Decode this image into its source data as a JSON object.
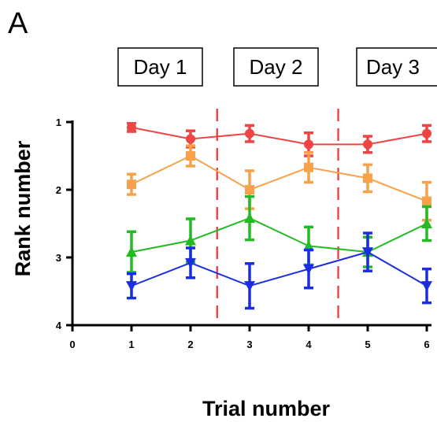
{
  "panel_label": "A",
  "day_labels": [
    "Day 1",
    "Day 2",
    "Day 3"
  ],
  "chart_data": {
    "type": "line",
    "xlabel": "Trial number",
    "ylabel": "Rank number",
    "xlim": [
      0,
      6
    ],
    "ylim": [
      1,
      4
    ],
    "y_inverted": true,
    "x_ticks": [
      0,
      1,
      2,
      3,
      4,
      5,
      6
    ],
    "y_ticks": [
      1,
      2,
      3,
      4
    ],
    "day_dividers": [
      2.45,
      4.5
    ],
    "divider_color": "#e8383d",
    "x": [
      1,
      2,
      3,
      4,
      5,
      6
    ],
    "series": [
      {
        "color": "#ee4444",
        "marker": "circle",
        "values": [
          1.08,
          1.25,
          1.17,
          1.33,
          1.33,
          1.17
        ],
        "errors": [
          0.06,
          0.12,
          0.12,
          0.17,
          0.12,
          0.12
        ]
      },
      {
        "color": "#f7a24a",
        "marker": "square",
        "values": [
          1.92,
          1.5,
          2.0,
          1.67,
          1.83,
          2.17
        ],
        "errors": [
          0.15,
          0.15,
          0.28,
          0.22,
          0.2,
          0.28
        ]
      },
      {
        "color": "#22bb22",
        "marker": "triangle-up",
        "values": [
          2.92,
          2.75,
          2.42,
          2.83,
          2.92,
          2.5
        ],
        "errors": [
          0.3,
          0.32,
          0.32,
          0.28,
          0.22,
          0.25
        ]
      },
      {
        "color": "#1a2ee0",
        "marker": "triangle-down",
        "values": [
          3.42,
          3.08,
          3.42,
          3.17,
          2.92,
          3.42
        ],
        "errors": [
          0.18,
          0.22,
          0.33,
          0.28,
          0.28,
          0.25
        ]
      }
    ]
  }
}
